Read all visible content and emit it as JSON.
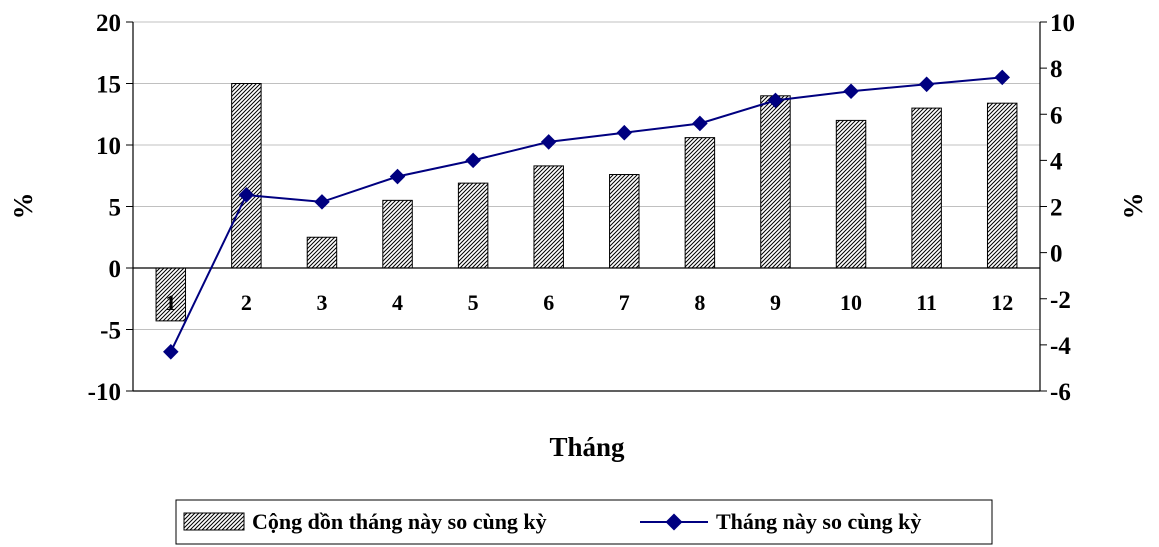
{
  "chart_data": {
    "type": "bar",
    "categories": [
      "1",
      "2",
      "3",
      "4",
      "5",
      "6",
      "7",
      "8",
      "9",
      "10",
      "11",
      "12"
    ],
    "series": [
      {
        "name": "Cộng dồn tháng này so cùng kỳ",
        "type": "bar",
        "axis": "left",
        "values": [
          -4.3,
          15.0,
          2.5,
          5.5,
          6.9,
          8.3,
          7.6,
          10.6,
          14.0,
          12.0,
          13.0,
          13.4
        ]
      },
      {
        "name": "Tháng này so cùng kỳ",
        "type": "line",
        "axis": "right",
        "color": "#000080",
        "values": [
          -4.3,
          2.5,
          2.2,
          3.3,
          4.0,
          4.8,
          5.2,
          5.6,
          6.6,
          7.0,
          7.3,
          7.6
        ]
      }
    ],
    "xlabel": "Tháng",
    "ylabel_left": "%",
    "ylabel_right": "%",
    "ylim_left": [
      -10,
      20
    ],
    "yticks_left": [
      "20",
      "15",
      "10",
      "5",
      "0",
      "-5",
      "-10"
    ],
    "ylim_right": [
      -6,
      10
    ],
    "yticks_right": [
      "10",
      "8",
      "6",
      "4",
      "2",
      "0",
      "-2",
      "-4",
      "-6"
    ],
    "grid": "horizontal",
    "legend": "bottom"
  }
}
